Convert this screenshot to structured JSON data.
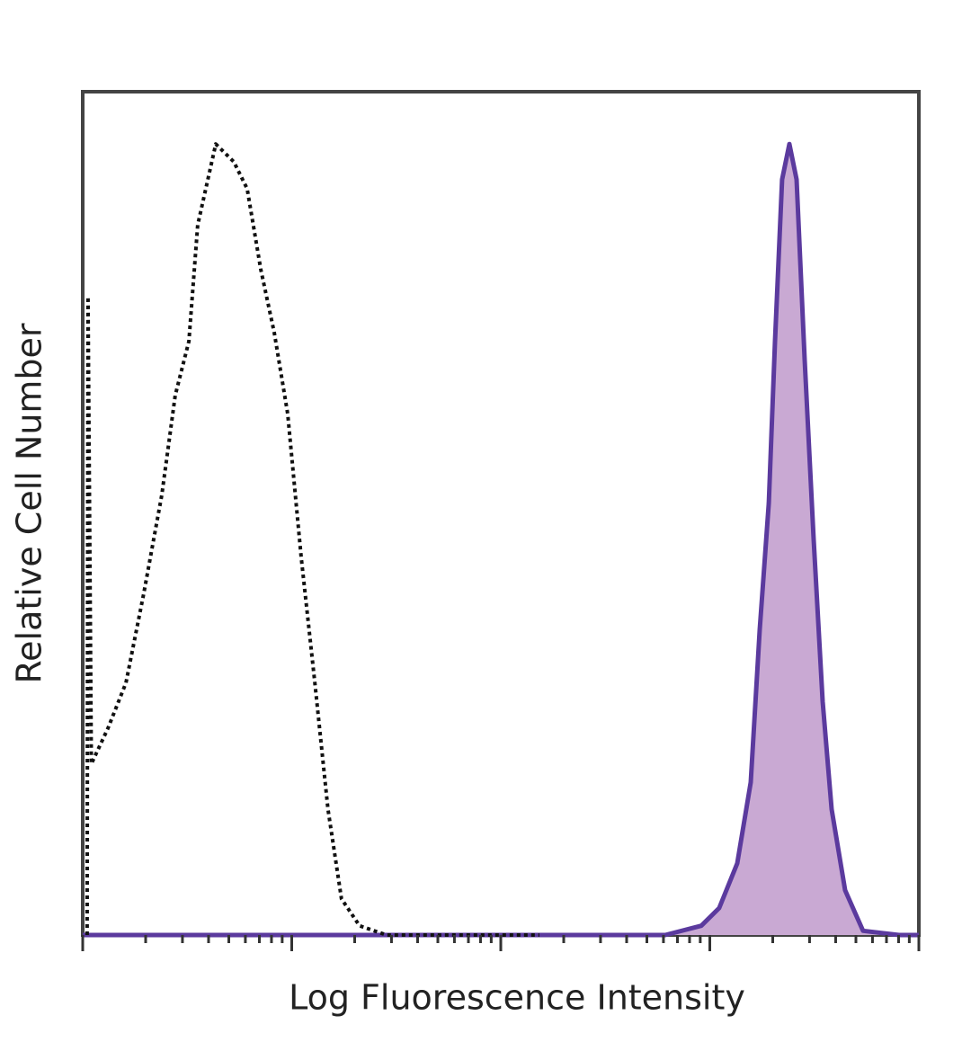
{
  "chart_data": {
    "type": "line",
    "xlabel": "Log Fluorescence Intensity",
    "ylabel": "Relative Cell Number",
    "xscale": "log",
    "xlim": [
      1,
      10000
    ],
    "ylim": [
      0,
      100
    ],
    "xticks": [
      1,
      2,
      3,
      4,
      5,
      6,
      7,
      8,
      9,
      10,
      20,
      30,
      40,
      50,
      60,
      70,
      80,
      90,
      100,
      200,
      300,
      400,
      500,
      600,
      700,
      800,
      900,
      1000,
      2000,
      3000,
      4000,
      5000,
      6000,
      7000,
      8000,
      9000,
      10000
    ],
    "series": [
      {
        "color": "#5b3a9e",
        "fill": "#c9a9d3",
        "dash": false,
        "x": [
          1,
          612,
          910,
          1109,
          1352,
          1570,
          1733,
          1914,
          2051,
          2218,
          2403,
          2600,
          2843,
          3140,
          3467,
          3828,
          4440,
          5408,
          8035,
          10000
        ],
        "values": [
          0,
          0,
          1.1,
          3.2,
          8.5,
          18.1,
          36.2,
          51.2,
          70.4,
          89.6,
          93.8,
          89.6,
          68.2,
          46.9,
          27.7,
          14.9,
          5.3,
          0.5,
          0,
          0
        ]
      },
      {
        "color": "#111111",
        "fill": null,
        "dash": true,
        "x": [
          1.05,
          1.06,
          1.1,
          1.32,
          1.61,
          1.96,
          2.39,
          2.77,
          3.22,
          3.55,
          4.33,
          5.28,
          6.12,
          7.11,
          8.25,
          9.56,
          11.1,
          12.9,
          14.9,
          17.3,
          21.1,
          28.4,
          153
        ],
        "values": [
          0,
          75.7,
          20.3,
          24.5,
          29.9,
          40.5,
          52.2,
          64,
          70.4,
          84.2,
          93.8,
          91.7,
          88.5,
          78.9,
          71.4,
          61.8,
          44.8,
          29.9,
          14.9,
          4.3,
          1.1,
          0,
          0
        ]
      }
    ]
  }
}
